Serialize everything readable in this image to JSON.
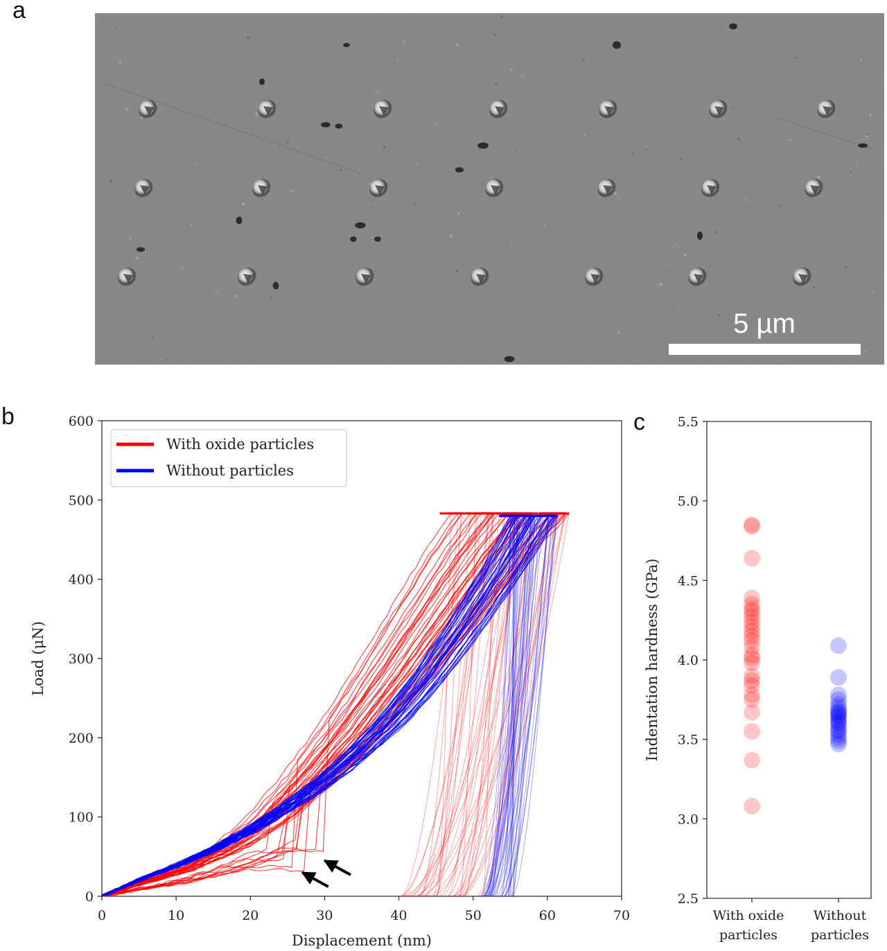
{
  "panels": {
    "a": "a",
    "b": "b",
    "c": "c"
  },
  "micrograph": {
    "scale_bar_label": "5 µm",
    "background_color": "#8e8e8e"
  },
  "colors": {
    "with_oxide": "#ff0000",
    "without": "#0000ff"
  },
  "chart_data": [
    {
      "id": "b",
      "type": "line",
      "xlabel": "Displacement (nm)",
      "ylabel": "Load (μN)",
      "xlim": [
        0,
        70
      ],
      "ylim": [
        0,
        600
      ],
      "xticks": [
        0,
        10,
        20,
        30,
        40,
        50,
        60,
        70
      ],
      "yticks": [
        0,
        100,
        200,
        300,
        400,
        500,
        600
      ],
      "grid": false,
      "legend_position": "top-left",
      "series": [
        {
          "name": "With oxide particles",
          "color": "#ff0000",
          "curve_count": 40,
          "max_load": 483,
          "loading_x": [
            0,
            5,
            10,
            15,
            20,
            25,
            30,
            35,
            40,
            45,
            49
          ],
          "loading_y": [
            0,
            18,
            35,
            60,
            98,
            150,
            210,
            280,
            355,
            430,
            483
          ],
          "max_displacement_range": [
            47,
            63
          ],
          "residual_depth_range": [
            40,
            52
          ]
        },
        {
          "name": "Without particles",
          "color": "#0000ff",
          "curve_count": 40,
          "max_load": 480,
          "loading_x": [
            0,
            5,
            10,
            15,
            20,
            25,
            30,
            35,
            40,
            45,
            50,
            55,
            59
          ],
          "loading_y": [
            0,
            20,
            38,
            58,
            82,
            110,
            142,
            180,
            225,
            280,
            345,
            415,
            480
          ],
          "max_displacement_range": [
            55,
            62
          ],
          "residual_depth_range": [
            51,
            56
          ]
        }
      ],
      "annotations": [
        {
          "type": "arrow",
          "x": 27,
          "y": 30
        },
        {
          "type": "arrow",
          "x": 30,
          "y": 45
        }
      ]
    },
    {
      "id": "c",
      "type": "scatter",
      "ylabel": "Indentation hardness (GPa)",
      "ylim": [
        2.5,
        5.5
      ],
      "yticks": [
        2.5,
        3.0,
        3.5,
        4.0,
        4.5,
        5.0,
        5.5
      ],
      "categories": [
        "With oxide\nparticles",
        "Without\nparticles"
      ],
      "series": [
        {
          "name": "With oxide particles",
          "color": "#ff0000",
          "values": [
            4.85,
            4.84,
            4.64,
            4.39,
            4.35,
            4.32,
            4.3,
            4.27,
            4.24,
            4.21,
            4.18,
            4.15,
            4.12,
            4.08,
            4.03,
            4.01,
            3.98,
            3.9,
            3.87,
            3.84,
            3.78,
            3.75,
            3.67,
            3.55,
            3.37,
            3.08
          ]
        },
        {
          "name": "Without particles",
          "color": "#0000ff",
          "values": [
            4.09,
            3.89,
            3.78,
            3.75,
            3.72,
            3.7,
            3.68,
            3.67,
            3.66,
            3.65,
            3.64,
            3.62,
            3.61,
            3.6,
            3.58,
            3.56,
            3.55,
            3.53,
            3.51,
            3.49,
            3.47
          ]
        }
      ]
    }
  ]
}
